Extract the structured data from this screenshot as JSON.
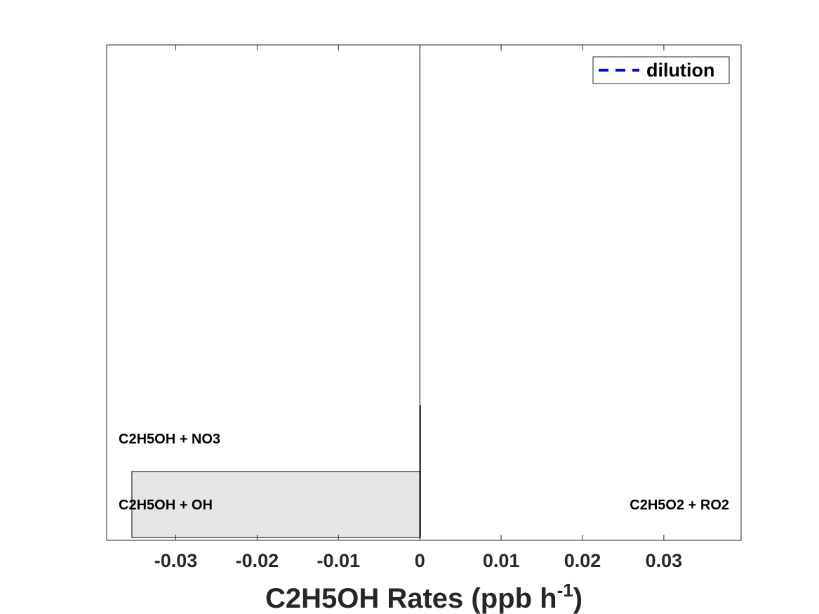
{
  "chart_data": {
    "type": "bar",
    "orientation": "horizontal",
    "xlabel": {
      "main": "C2H5OH Rates (ppb h",
      "superscript": "-1",
      "close": ")"
    },
    "xlim": [
      -0.0385,
      0.0395
    ],
    "xticks": [
      -0.03,
      -0.02,
      -0.01,
      0,
      0.01,
      0.02,
      0.03
    ],
    "xtick_labels": [
      "-0.03",
      "-0.02",
      "-0.01",
      "0",
      "0.01",
      "0.02",
      "0.03"
    ],
    "rows": 2,
    "bars": [
      {
        "category": "C2H5OH + OH",
        "value": -0.0354,
        "side": "negative",
        "row": 0
      },
      {
        "category": "C2H5O2 + RO2",
        "value": 3e-05,
        "side": "positive",
        "row": 0
      },
      {
        "category": "C2H5OH + NO3",
        "value": -1e-05,
        "side": "negative",
        "row": 1
      }
    ],
    "bar_color": "#e6e6e6",
    "legend": {
      "placement": "top-right",
      "entries": [
        {
          "label": "dilution",
          "style": "dashed",
          "color": "#0000ff"
        }
      ]
    },
    "grid": false
  }
}
